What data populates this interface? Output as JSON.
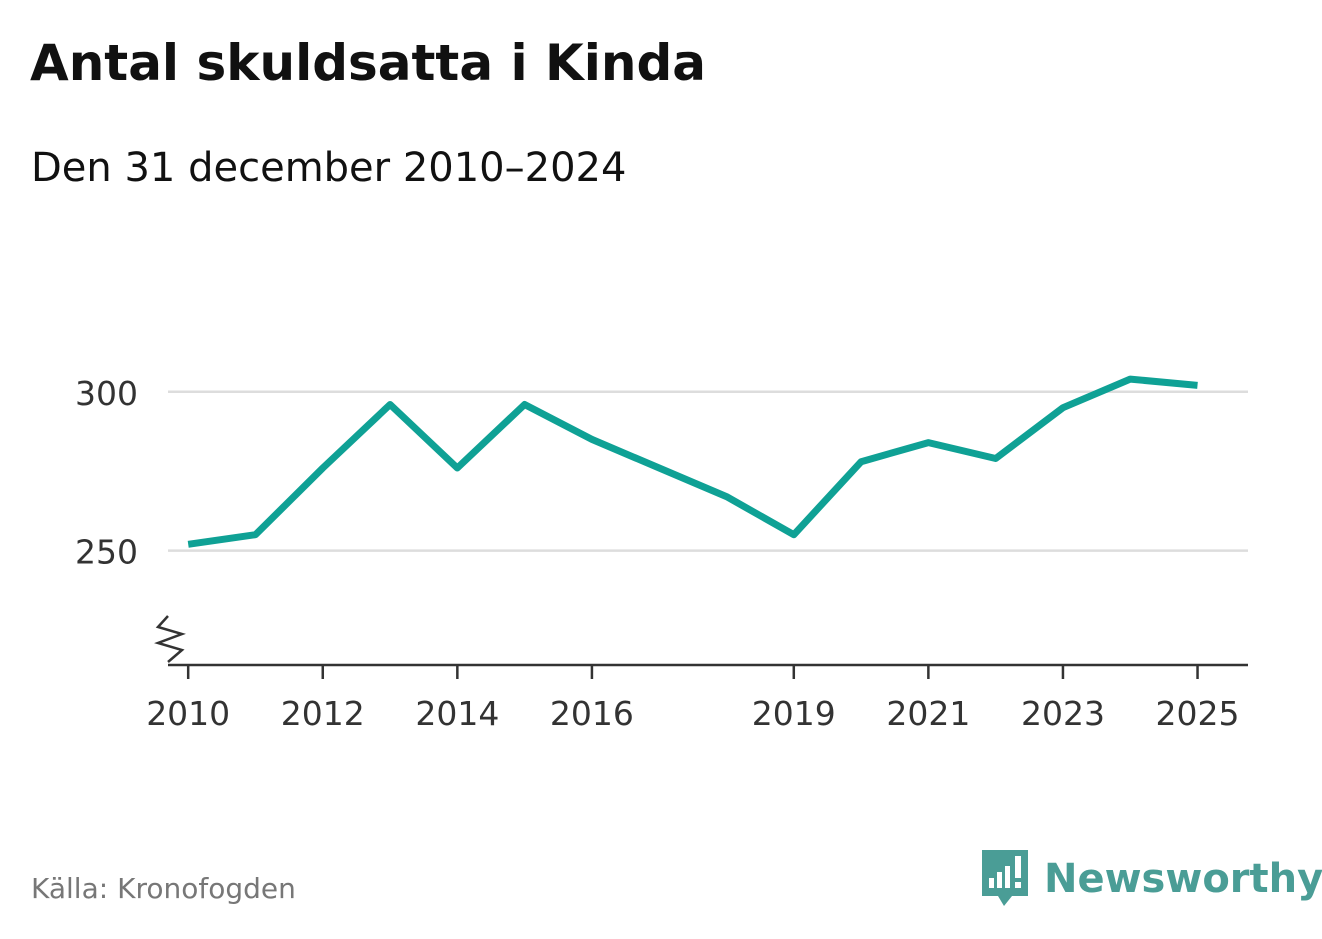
{
  "header": {
    "title": "Antal skuldsatta i Kinda",
    "subtitle": "Den 31 december 2010–2024"
  },
  "footer": {
    "source": "Källa: Kronofogden",
    "brand": "Newsworthy"
  },
  "colors": {
    "line": "#0fa195",
    "grid": "#dddddd",
    "axis": "#333333",
    "brand": "#4a9d96"
  },
  "chart_data": {
    "type": "line",
    "title": "Antal skuldsatta i Kinda",
    "subtitle": "Den 31 december 2010–2024",
    "xlabel": "",
    "ylabel": "",
    "xlim": [
      2009.7,
      2025.75
    ],
    "ylim": [
      214,
      310
    ],
    "axis_break": true,
    "grid": true,
    "x_ticks": [
      2010,
      2012,
      2014,
      2016,
      2019,
      2021,
      2023,
      2025
    ],
    "y_ticks": [
      250,
      300
    ],
    "series": [
      {
        "name": "Antal skuldsatta",
        "x": [
          2010,
          2011,
          2012,
          2013,
          2014,
          2015,
          2016,
          2017,
          2018,
          2019,
          2020,
          2021,
          2022,
          2023,
          2024,
          2025
        ],
        "values": [
          252,
          255,
          276,
          296,
          276,
          296,
          285,
          276,
          267,
          255,
          278,
          284,
          279,
          295,
          304,
          302
        ]
      }
    ]
  }
}
